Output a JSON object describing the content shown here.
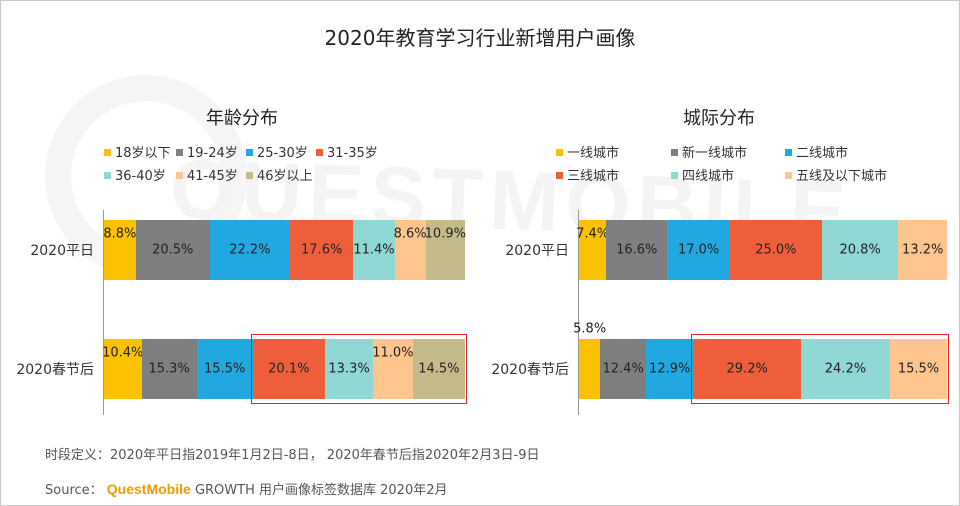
{
  "title": "2020年教育学习行业新增用户画像",
  "note": "时段定义：2020年平日指2019年1月2日-8日， 2020年春节后指2020年2月3日-9日",
  "source": {
    "prefix": "Source：",
    "brand": "QuestMobile",
    "rest": "GROWTH 用户画像标签数据库 2020年2月"
  },
  "watermark": "QUESTMOBILE",
  "chart_data": [
    {
      "type": "bar",
      "stacked": true,
      "orientation": "horizontal",
      "title": "年龄分布",
      "categories": [
        "2020平日",
        "2020春节后"
      ],
      "series": [
        {
          "name": "18岁以下",
          "color": "#fcc200",
          "values": [
            8.8,
            10.4
          ]
        },
        {
          "name": "19-24岁",
          "color": "#7f7f7f",
          "values": [
            20.5,
            15.3
          ]
        },
        {
          "name": "25-30岁",
          "color": "#22a8e1",
          "values": [
            22.2,
            15.5
          ]
        },
        {
          "name": "31-35岁",
          "color": "#ee5e3b",
          "values": [
            17.6,
            20.1
          ]
        },
        {
          "name": "36-40岁",
          "color": "#8fd8d4",
          "values": [
            11.4,
            13.3
          ]
        },
        {
          "name": "41-45岁",
          "color": "#ffc58f",
          "values": [
            8.6,
            11.0
          ]
        },
        {
          "name": "46岁以上",
          "color": "#c5bb8a",
          "values": [
            10.9,
            14.5
          ]
        }
      ],
      "unit": "%",
      "legend": "top",
      "highlight": {
        "category": "2020春节后",
        "series": [
          "31-35岁",
          "36-40岁",
          "41-45岁",
          "46岁以上"
        ]
      }
    },
    {
      "type": "bar",
      "stacked": true,
      "orientation": "horizontal",
      "title": "城际分布",
      "categories": [
        "2020平日",
        "2020春节后"
      ],
      "series": [
        {
          "name": "一线城市",
          "color": "#fcc200",
          "values": [
            7.4,
            5.8
          ]
        },
        {
          "name": "新一线城市",
          "color": "#7f7f7f",
          "values": [
            16.6,
            12.4
          ]
        },
        {
          "name": "二线城市",
          "color": "#22a8e1",
          "values": [
            17.0,
            12.9
          ]
        },
        {
          "name": "三线城市",
          "color": "#ee5e3b",
          "values": [
            25.0,
            29.2
          ]
        },
        {
          "name": "四线城市",
          "color": "#8fd8d4",
          "values": [
            20.8,
            24.2
          ]
        },
        {
          "name": "五线及以下城市",
          "color": "#ffc58f",
          "values": [
            13.2,
            15.5
          ]
        }
      ],
      "unit": "%",
      "legend": "top",
      "highlight": {
        "category": "2020春节后",
        "series": [
          "三线城市",
          "四线城市",
          "五线及以下城市"
        ]
      }
    }
  ]
}
